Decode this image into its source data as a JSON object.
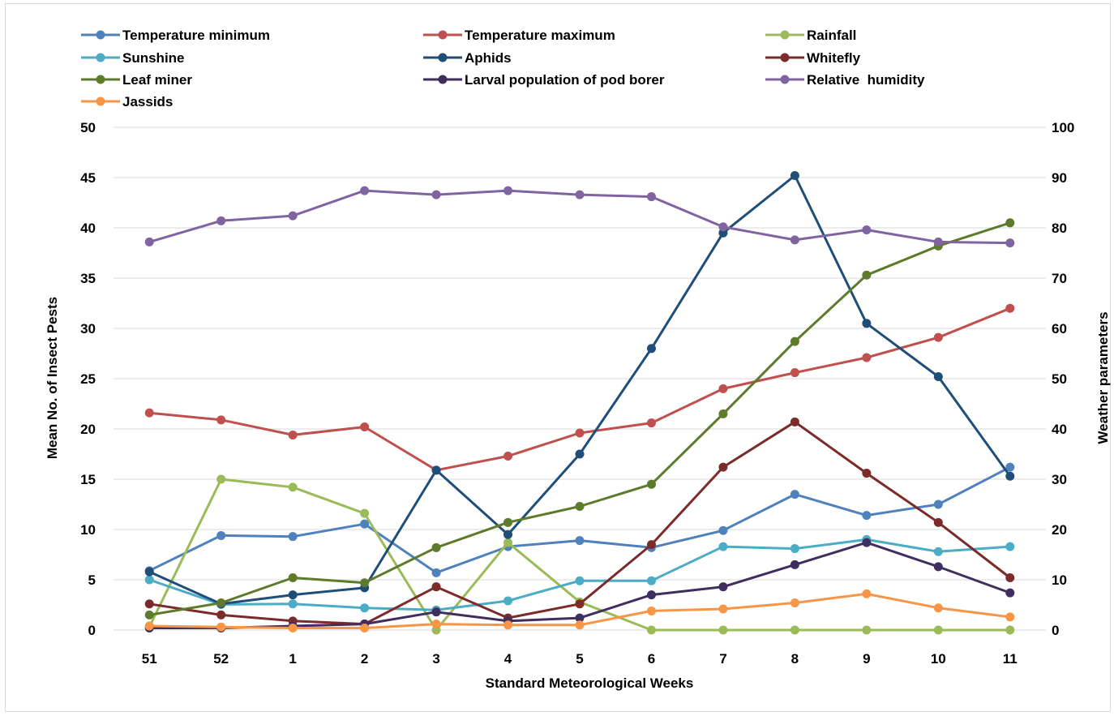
{
  "chart_data": {
    "type": "line",
    "xlabel": "Standard Meteorological Weeks",
    "ylabel": "Mean No. of Insect Pests",
    "y2label": "Weather parameters",
    "categories": [
      "51",
      "52",
      "1",
      "2",
      "3",
      "4",
      "5",
      "6",
      "7",
      "8",
      "9",
      "10",
      "11"
    ],
    "ylim": [
      0,
      50
    ],
    "y2lim": [
      0,
      100
    ],
    "yticks": [
      "0",
      "5",
      "10",
      "15",
      "20",
      "25",
      "30",
      "35",
      "40",
      "45",
      "50"
    ],
    "y2ticks": [
      "0",
      "10",
      "20",
      "30",
      "40",
      "50",
      "60",
      "70",
      "80",
      "90",
      "100"
    ],
    "grid": "horizontal",
    "legend_position": "top",
    "series": [
      {
        "name": "Temperature minimum",
        "axis": "right",
        "color": "#4F81BD",
        "values": [
          11.8,
          18.8,
          18.6,
          21.1,
          11.4,
          16.6,
          17.8,
          16.4,
          19.8,
          27,
          22.8,
          25,
          32.4
        ]
      },
      {
        "name": "Temperature maximum",
        "axis": "right",
        "color": "#C0504D",
        "values": [
          43.2,
          41.8,
          38.8,
          40.4,
          31.8,
          34.6,
          39.2,
          41.2,
          48,
          51.2,
          54.2,
          58.2,
          64
        ]
      },
      {
        "name": "Rainfall",
        "axis": "right",
        "color": "#9BBB59",
        "values": [
          0.6,
          30,
          28.4,
          23.2,
          0,
          17.4,
          5.6,
          0,
          0,
          0,
          0,
          0,
          0
        ]
      },
      {
        "name": "Sunshine",
        "axis": "right",
        "color": "#4BACC6",
        "values": [
          10,
          5.1,
          5.2,
          4.4,
          4,
          5.8,
          9.8,
          9.8,
          16.6,
          16.2,
          18,
          15.6,
          16.6
        ]
      },
      {
        "name": "Aphids",
        "axis": "left",
        "color": "#1F4E79",
        "values": [
          5.8,
          2.6,
          3.5,
          4.2,
          15.9,
          9.5,
          17.5,
          28,
          39.5,
          45.2,
          30.5,
          25.2,
          15.3
        ]
      },
      {
        "name": "Whitefly",
        "axis": "left",
        "color": "#7B2C2A",
        "values": [
          2.6,
          1.5,
          0.9,
          0.6,
          4.3,
          1.2,
          2.6,
          8.5,
          16.2,
          20.7,
          15.6,
          10.7,
          5.2
        ]
      },
      {
        "name": "Leaf miner",
        "axis": "left",
        "color": "#5E7A2B",
        "values": [
          1.5,
          2.7,
          5.2,
          4.7,
          8.2,
          10.7,
          12.3,
          14.5,
          21.5,
          28.7,
          35.3,
          38.2,
          40.5
        ]
      },
      {
        "name": "Larval population of pod borer",
        "axis": "left",
        "color": "#3F2E5E",
        "values": [
          0.2,
          0.2,
          0.4,
          0.6,
          1.8,
          0.9,
          1.2,
          3.5,
          4.3,
          6.5,
          8.7,
          6.3,
          3.7
        ]
      },
      {
        "name": "Relative  humidity",
        "axis": "right",
        "color": "#8064A2",
        "values": [
          77.2,
          81.4,
          82.4,
          87.4,
          86.6,
          87.4,
          86.6,
          86.2,
          80.2,
          77.6,
          79.6,
          77.2,
          77
        ]
      },
      {
        "name": "Jassids",
        "axis": "left",
        "color": "#F79646",
        "values": [
          0.4,
          0.3,
          0.2,
          0.2,
          0.6,
          0.5,
          0.5,
          1.9,
          2.1,
          2.7,
          3.6,
          2.2,
          1.3
        ]
      }
    ]
  }
}
